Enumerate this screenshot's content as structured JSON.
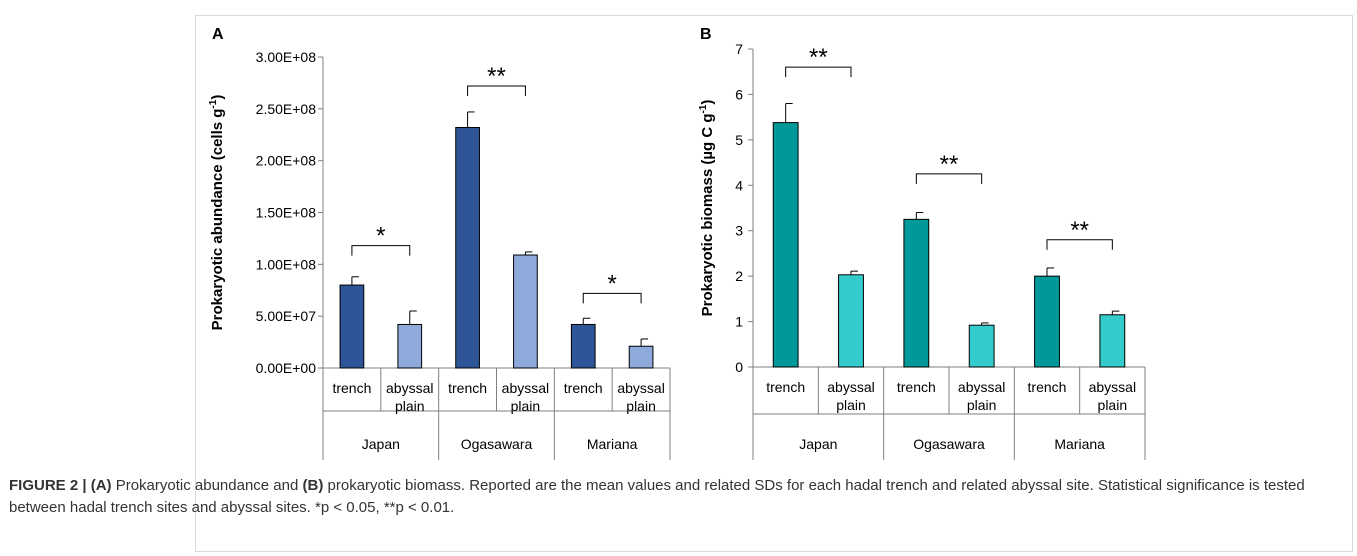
{
  "caption": {
    "figure_label": "FIGURE 2 |",
    "a_ref": "(A)",
    "a_text": " Prokaryotic abundance and ",
    "b_ref": "(B)",
    "b_text": " prokaryotic biomass. Reported are the mean values and related SDs for each hadal trench and related abyssal site. Statistical significance is tested between hadal trench sites and abyssal sites. *p < 0.05, **p < 0.01."
  },
  "colors": {
    "trench_A": "#2e5597",
    "abyssal_A": "#8eaadb",
    "trench_B": "#009999",
    "abyssal_B": "#33cccc"
  },
  "chart_data": [
    {
      "type": "bar",
      "panel": "A",
      "ylabel": "Prokaryotic abundance (cells g-1)",
      "ylabel_main": "Prokaryotic abundance (cells g",
      "ylabel_sup": "-1",
      "ylabel_end": ")",
      "ylim": [
        0,
        300000000
      ],
      "yticks": [
        "0.00E+00",
        "5.00E+07",
        "1.00E+08",
        "1.50E+08",
        "2.00E+08",
        "2.50E+08",
        "3.00E+08"
      ],
      "groups": [
        "Japan",
        "Ogasawara",
        "Mariana"
      ],
      "categories": [
        [
          "trench"
        ],
        [
          "abyssal",
          "plain"
        ],
        [
          "trench"
        ],
        [
          "abyssal",
          "plain"
        ],
        [
          "trench"
        ],
        [
          "abyssal",
          "plain"
        ]
      ],
      "values": [
        80000000,
        42000000,
        232000000,
        109000000,
        42000000,
        21000000
      ],
      "errors": [
        8000000,
        13000000,
        15000000,
        3000000,
        6000000,
        7000000
      ],
      "bar_kinds": [
        "trench",
        "abyssal",
        "trench",
        "abyssal",
        "trench",
        "abyssal"
      ],
      "significance": [
        {
          "label": "*",
          "pair": [
            0,
            1
          ],
          "level": 118000000
        },
        {
          "label": "**",
          "pair": [
            2,
            3
          ],
          "level": 272000000
        },
        {
          "label": "*",
          "pair": [
            4,
            5
          ],
          "level": 72000000
        }
      ]
    },
    {
      "type": "bar",
      "panel": "B",
      "ylabel": "Prokaryotic biomass (µg C g-1)",
      "ylabel_main": "Prokaryotic biomass (µg C g",
      "ylabel_sup": "-1",
      "ylabel_end": ")",
      "ylim": [
        0,
        7
      ],
      "yticks": [
        "0",
        "1",
        "2",
        "3",
        "4",
        "5",
        "6",
        "7"
      ],
      "groups": [
        "Japan",
        "Ogasawara",
        "Mariana"
      ],
      "categories": [
        [
          "trench"
        ],
        [
          "abyssal",
          "plain"
        ],
        [
          "trench"
        ],
        [
          "abyssal",
          "plain"
        ],
        [
          "trench"
        ],
        [
          "abyssal",
          "plain"
        ]
      ],
      "values": [
        5.38,
        2.03,
        3.25,
        0.92,
        2.0,
        1.15
      ],
      "errors": [
        0.42,
        0.08,
        0.15,
        0.05,
        0.18,
        0.08
      ],
      "bar_kinds": [
        "trench",
        "abyssal",
        "trench",
        "abyssal",
        "trench",
        "abyssal"
      ],
      "significance": [
        {
          "label": "**",
          "pair": [
            0,
            1
          ],
          "level": 6.6
        },
        {
          "label": "**",
          "pair": [
            2,
            3
          ],
          "level": 4.25
        },
        {
          "label": "**",
          "pair": [
            4,
            5
          ],
          "level": 2.8
        }
      ]
    }
  ]
}
